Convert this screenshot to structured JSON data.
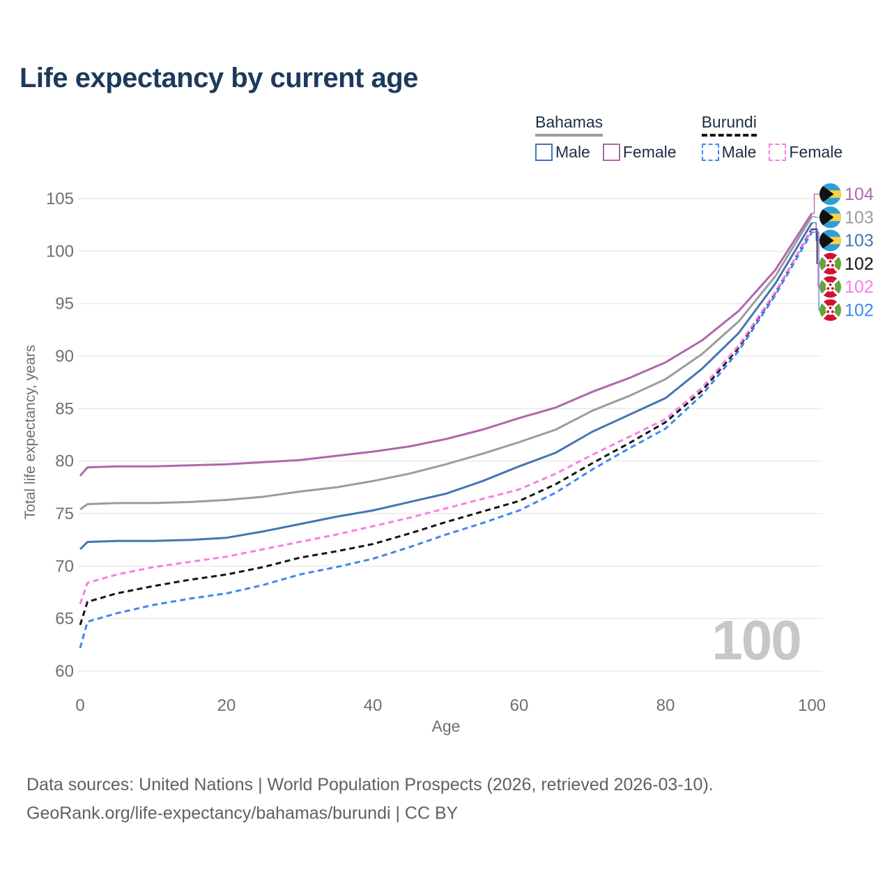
{
  "title": "Life expectancy by current age",
  "watermark": "100",
  "legend": {
    "groups": [
      {
        "name": "Bahamas",
        "line_style": "solid",
        "underline_color": "#9c9c9c",
        "items": [
          {
            "label": "Male",
            "color": "#4575b4"
          },
          {
            "label": "Female",
            "color": "#b066ac"
          }
        ]
      },
      {
        "name": "Burundi",
        "line_style": "dashed",
        "underline_color": "#141414",
        "items": [
          {
            "label": "Male",
            "color": "#4186f0"
          },
          {
            "label": "Female",
            "color": "#fa7de2"
          }
        ]
      }
    ]
  },
  "footer": {
    "line1": "Data sources: United Nations | World Population Prospects (2026, retrieved 2026-03-10).",
    "line2": "GeoRank.org/life-expectancy/bahamas/burundi | CC BY"
  },
  "colors": {
    "title_text": "#1d3a5c",
    "legend_text": "#1d2d44",
    "axis_text": "#6f6f6f",
    "gridline": "#ebebeb",
    "watermark": "#c7c7c7",
    "footer_text": "#5d6166",
    "bahamas_flag": {
      "aquamarine": "#2e9fd4",
      "gold": "#fdd146",
      "black": "#121212"
    },
    "burundi_flag": {
      "red": "#d21034",
      "green": "#68a239",
      "white": "#ffffff"
    }
  },
  "chart_data": {
    "type": "line",
    "title": "Life expectancy by current age",
    "xlabel": "Age",
    "ylabel": "Total life expectancy, years",
    "xlim": [
      0,
      100
    ],
    "ylim": [
      60,
      105
    ],
    "x_ticks": [
      0,
      20,
      40,
      60,
      80,
      100
    ],
    "y_ticks": [
      60,
      65,
      70,
      75,
      80,
      85,
      90,
      95,
      100,
      105
    ],
    "grid": "horizontal",
    "legend_position": "top-right",
    "ages": [
      0,
      1,
      5,
      10,
      15,
      20,
      25,
      30,
      35,
      40,
      45,
      50,
      55,
      60,
      65,
      70,
      75,
      80,
      85,
      90,
      95,
      100
    ],
    "series": [
      {
        "name": "Bahamas Female",
        "country": "Bahamas",
        "sex": "Female",
        "style": "solid",
        "color": "#b066ac",
        "flag": "bahamas",
        "end_label": "104",
        "values": [
          78.6,
          79.4,
          79.5,
          79.5,
          79.6,
          79.7,
          79.9,
          80.1,
          80.5,
          80.9,
          81.4,
          82.1,
          83.0,
          84.1,
          85.1,
          86.6,
          87.9,
          89.4,
          91.5,
          94.3,
          98.2,
          103.6
        ]
      },
      {
        "name": "Bahamas Both sexes",
        "country": "Bahamas",
        "sex": "Both",
        "style": "solid",
        "color": "#9c9c9c",
        "flag": "bahamas",
        "end_label": "103",
        "values": [
          75.4,
          75.9,
          76.0,
          76.0,
          76.1,
          76.3,
          76.6,
          77.1,
          77.5,
          78.1,
          78.8,
          79.7,
          80.7,
          81.8,
          83.0,
          84.8,
          86.2,
          87.8,
          90.2,
          93.3,
          97.6,
          103.3
        ]
      },
      {
        "name": "Bahamas Male",
        "country": "Bahamas",
        "sex": "Male",
        "style": "solid",
        "color": "#4575b4",
        "flag": "bahamas",
        "end_label": "103",
        "values": [
          71.6,
          72.3,
          72.4,
          72.4,
          72.5,
          72.7,
          73.3,
          74.0,
          74.7,
          75.3,
          76.1,
          76.9,
          78.1,
          79.5,
          80.8,
          82.8,
          84.4,
          86.0,
          88.8,
          92.2,
          96.9,
          102.7
        ]
      },
      {
        "name": "Burundi Both sexes",
        "country": "Burundi",
        "sex": "Both",
        "style": "dashed",
        "color": "#141414",
        "flag": "burundi",
        "end_label": "102",
        "values": [
          64.4,
          66.6,
          67.4,
          68.1,
          68.7,
          69.2,
          69.9,
          70.8,
          71.4,
          72.1,
          73.1,
          74.2,
          75.2,
          76.2,
          77.8,
          79.8,
          81.7,
          83.7,
          86.7,
          90.8,
          96.0,
          102.1
        ]
      },
      {
        "name": "Burundi Female",
        "country": "Burundi",
        "sex": "Female",
        "style": "dashed",
        "color": "#fa7de2",
        "flag": "burundi",
        "end_label": "102",
        "values": [
          66.4,
          68.4,
          69.2,
          69.9,
          70.4,
          70.9,
          71.6,
          72.3,
          73.0,
          73.8,
          74.6,
          75.5,
          76.4,
          77.3,
          78.8,
          80.6,
          82.3,
          84.0,
          87.0,
          91.0,
          96.1,
          102.0
        ]
      },
      {
        "name": "Burundi Male",
        "country": "Burundi",
        "sex": "Male",
        "style": "dashed",
        "color": "#4186f0",
        "flag": "burundi",
        "end_label": "102",
        "values": [
          62.2,
          64.7,
          65.5,
          66.3,
          66.9,
          67.4,
          68.2,
          69.2,
          69.9,
          70.7,
          71.8,
          73.0,
          74.1,
          75.3,
          77.0,
          79.2,
          81.2,
          83.1,
          86.3,
          90.5,
          95.8,
          101.8
        ]
      }
    ]
  }
}
